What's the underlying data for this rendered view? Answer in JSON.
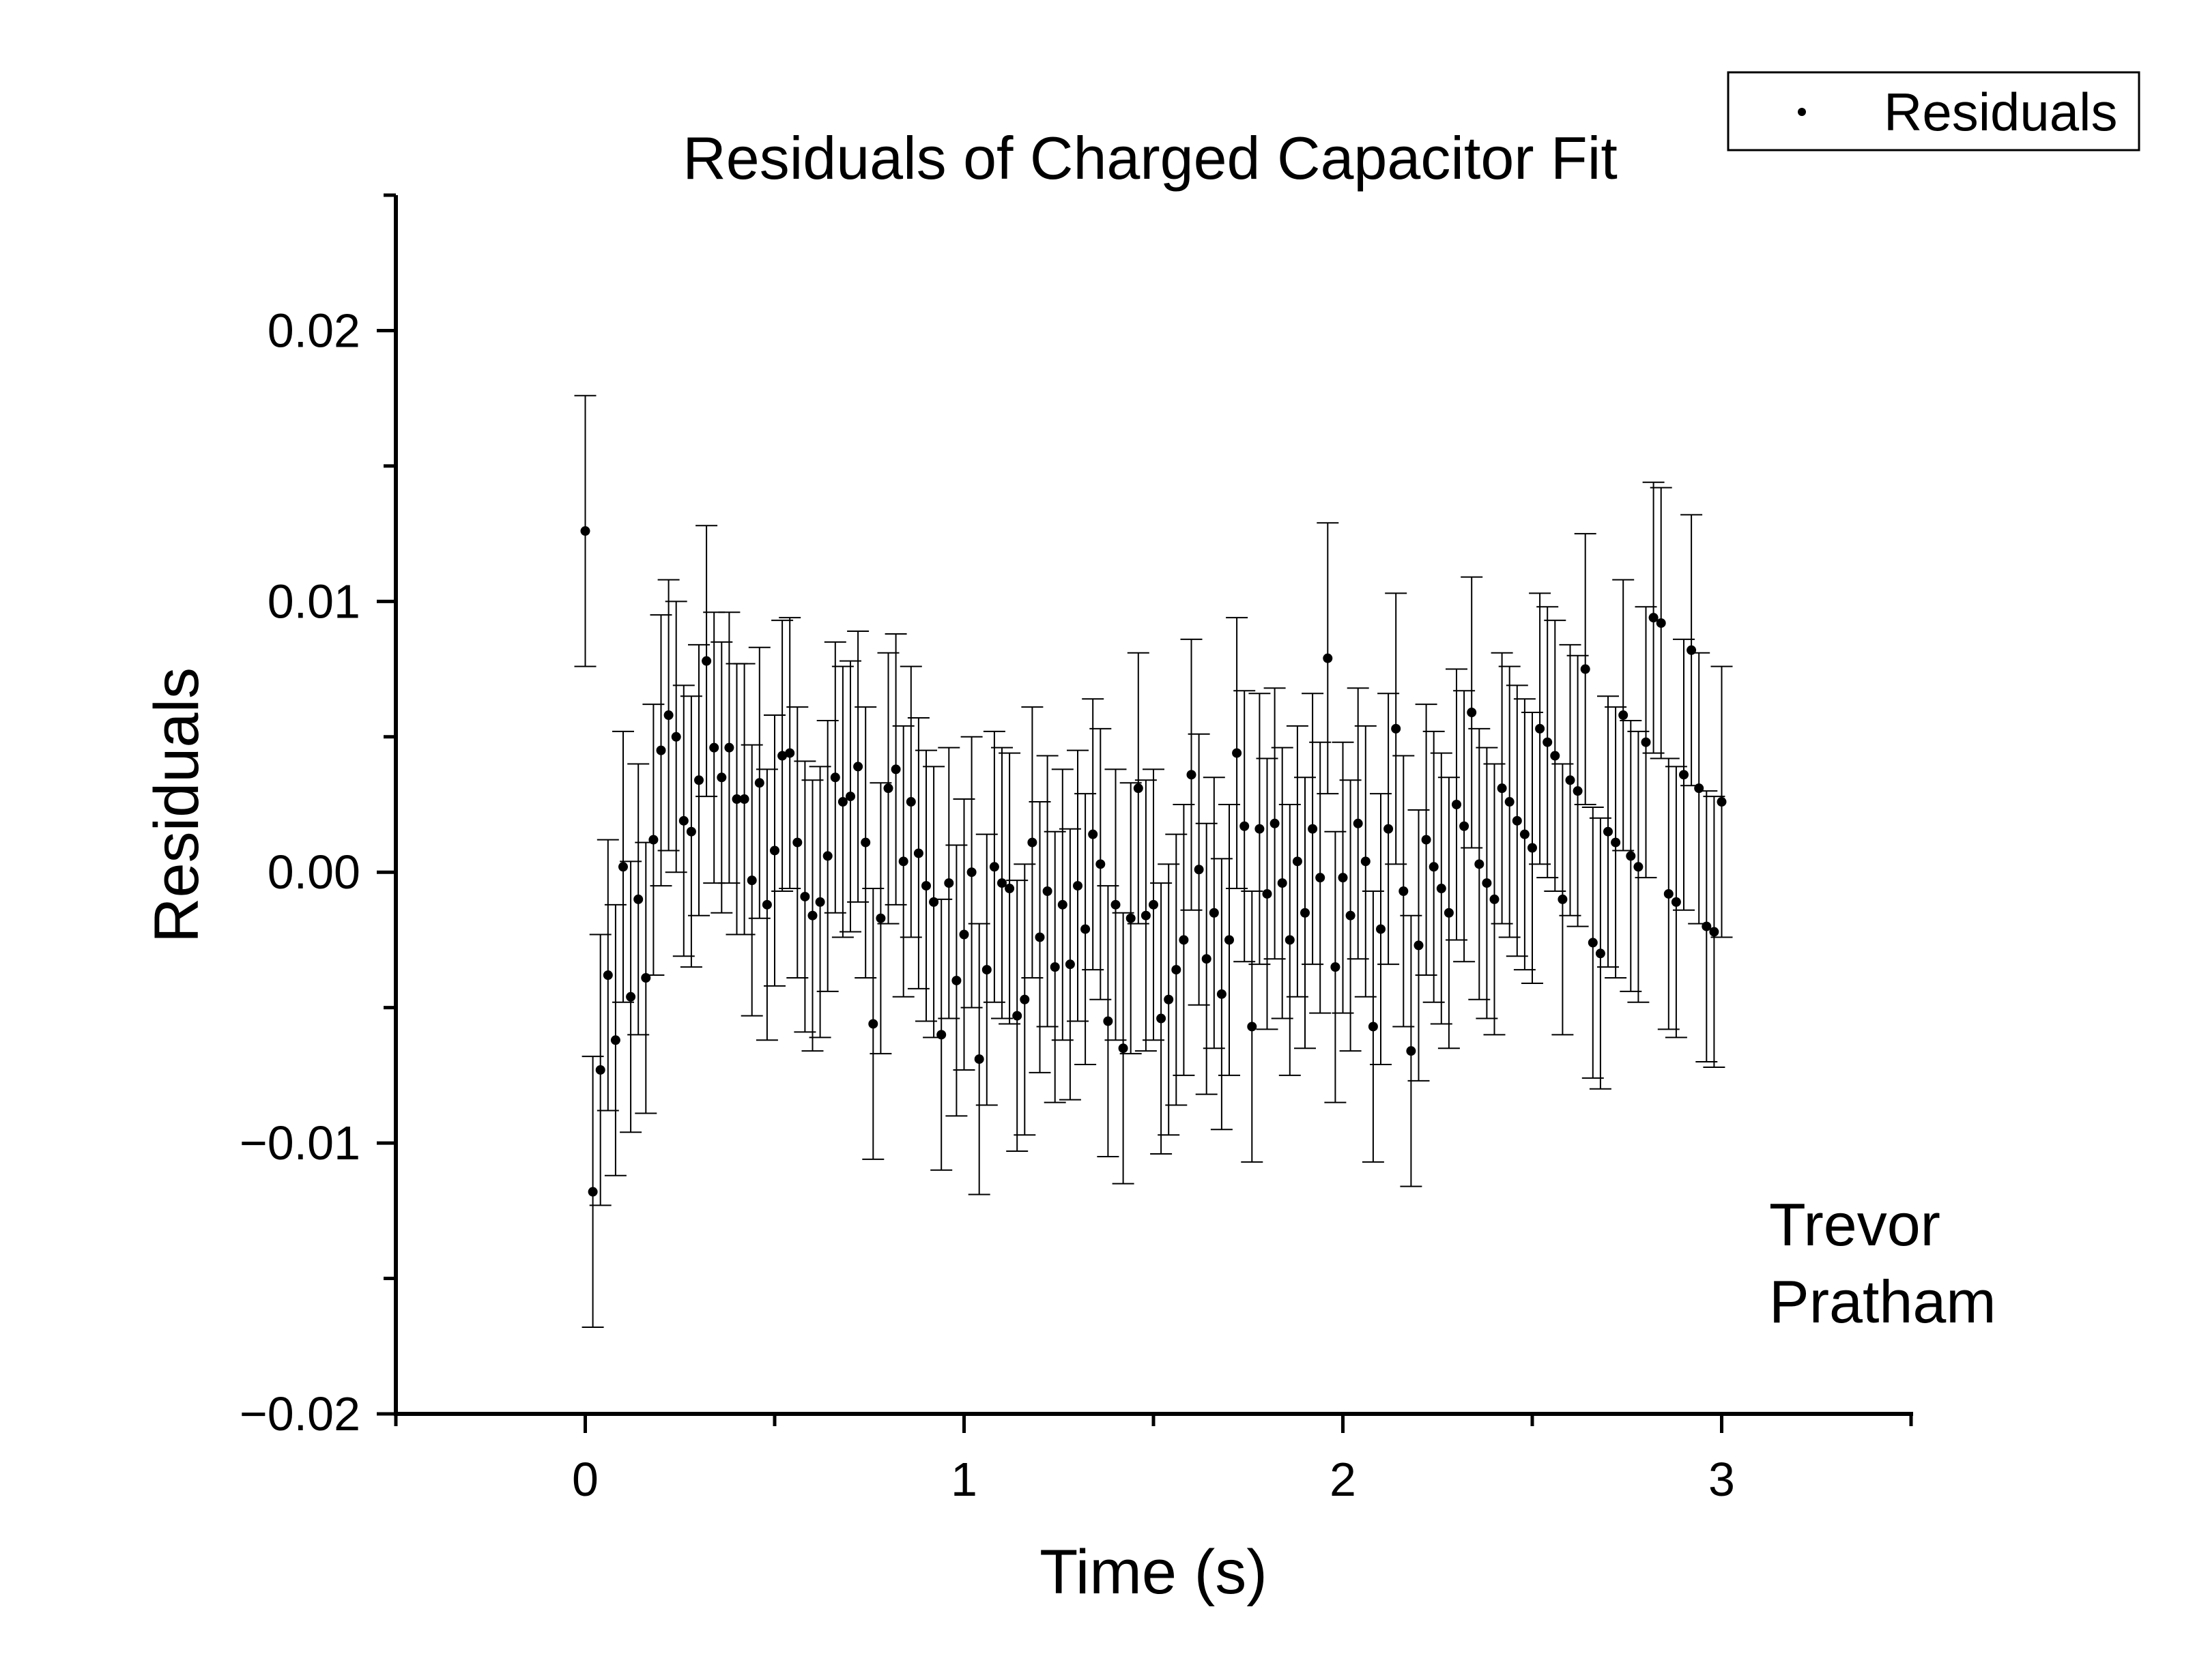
{
  "chart_data": {
    "type": "scatter",
    "title": "Residuals of Charged Capacitor Fit",
    "xlabel": "Time (s)",
    "ylabel": "Residuals",
    "xlim": [
      -0.5,
      3.5
    ],
    "ylim": [
      -0.02,
      0.025
    ],
    "x_ticks": [
      0,
      1,
      2,
      3
    ],
    "x_tick_labels": [
      "0",
      "1",
      "2",
      "3"
    ],
    "y_ticks": [
      -0.02,
      -0.01,
      0.0,
      0.01,
      0.02
    ],
    "y_tick_labels": [
      "−0.02",
      "−0.01",
      "0.00",
      "0.01",
      "0.02"
    ],
    "grid": false,
    "legend": {
      "position": "top-right",
      "entries": [
        "Residuals"
      ]
    },
    "annotations": [
      "Trevor",
      "Pratham"
    ],
    "error": 0.005,
    "series": [
      {
        "name": "Residuals",
        "x_start": 0.0,
        "x_step": 0.02,
        "y": [
          0.0126,
          -0.0118,
          -0.0073,
          -0.0038,
          -0.0062,
          0.0002,
          -0.0046,
          -0.001,
          -0.0039,
          0.0012,
          0.0045,
          0.0058,
          0.005,
          0.0019,
          0.0015,
          0.0034,
          0.0078,
          0.0046,
          0.0035,
          0.0046,
          0.0027,
          0.0027,
          -0.0003,
          0.0033,
          -0.0012,
          0.0008,
          0.0043,
          0.0044,
          0.0011,
          -0.0009,
          -0.0016,
          -0.0011,
          0.0006,
          0.0035,
          0.0026,
          0.0028,
          0.0039,
          0.0011,
          -0.0056,
          -0.0017,
          0.0031,
          0.0038,
          0.0004,
          0.0026,
          0.0007,
          -0.0005,
          -0.0011,
          -0.006,
          -0.0004,
          -0.004,
          -0.0023,
          0.0,
          -0.0069,
          -0.0036,
          0.0002,
          -0.0004,
          -0.0006,
          -0.0053,
          -0.0047,
          0.0011,
          -0.0024,
          -0.0007,
          -0.0035,
          -0.0012,
          -0.0034,
          -0.0005,
          -0.0021,
          0.0014,
          0.0003,
          -0.0055,
          -0.0012,
          -0.0065,
          -0.0017,
          0.0031,
          -0.0016,
          -0.0012,
          -0.0054,
          -0.0047,
          -0.0036,
          -0.0025,
          0.0036,
          0.0001,
          -0.0032,
          -0.0015,
          -0.0045,
          -0.0025,
          0.0044,
          0.0017,
          -0.0057,
          0.0016,
          -0.0008,
          0.0018,
          -0.0004,
          -0.0025,
          0.0004,
          -0.0015,
          0.0016,
          -0.0002,
          0.0079,
          -0.0035,
          -0.0002,
          -0.0016,
          0.0018,
          0.0004,
          -0.0057,
          -0.0021,
          0.0016,
          0.0053,
          -0.0007,
          -0.0066,
          -0.0027,
          0.0012,
          0.0002,
          -0.0006,
          -0.0015,
          0.0025,
          0.0017,
          0.0059,
          0.0003,
          -0.0004,
          -0.001,
          0.0031,
          0.0026,
          0.0019,
          0.0014,
          0.0009,
          0.0053,
          0.0048,
          0.0043,
          -0.001,
          0.0034,
          0.003,
          0.0075,
          -0.0026,
          -0.003,
          0.0015,
          0.0011,
          0.0058,
          0.0006,
          0.0002,
          0.0048,
          0.0094,
          0.0092,
          -0.0008,
          -0.0011,
          0.0036,
          0.0082,
          0.0031,
          -0.002,
          -0.0022,
          0.0026
        ]
      }
    ]
  }
}
